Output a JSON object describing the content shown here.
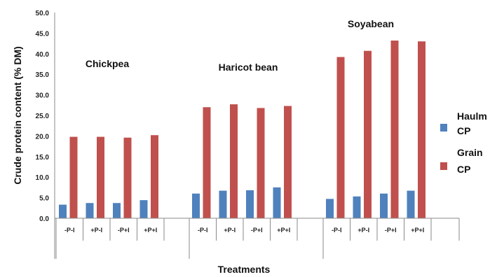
{
  "chart_data": {
    "type": "bar",
    "ylabel": "Crude protein content (% DM)",
    "xlabel": "Treatments",
    "ylim": [
      0,
      50
    ],
    "ytick_step": 5,
    "ytick_labels": [
      "0.0",
      "5.0",
      "10.0",
      "15.0",
      "20.0",
      "25.0",
      "30.0",
      "35.0",
      "40.0",
      "45.0",
      "50.0"
    ],
    "grid": false,
    "legend_position": "right",
    "groups": [
      {
        "name": "Chickpea",
        "categories": [
          "-P-I",
          "+P-I",
          "-P+I",
          "+P+I"
        ],
        "series": [
          {
            "values": [
              3.3,
              3.7,
              3.7,
              4.4
            ]
          },
          {
            "values": [
              19.8,
              19.8,
              19.6,
              20.2
            ]
          }
        ]
      },
      {
        "name": "Haricot bean",
        "categories": [
          "-P-I",
          "+P-I",
          "-P+I",
          "+P+I"
        ],
        "series": [
          {
            "values": [
              6.0,
              6.7,
              6.8,
              7.5
            ]
          },
          {
            "values": [
              27.0,
              27.7,
              26.8,
              27.3
            ]
          }
        ]
      },
      {
        "name": "Soyabean",
        "categories": [
          "-P-I",
          "+P-I",
          "-P+I",
          "+P+I"
        ],
        "series": [
          {
            "values": [
              4.7,
              5.3,
              6.0,
              6.7
            ]
          },
          {
            "values": [
              39.2,
              40.7,
              43.2,
              43.0
            ]
          }
        ]
      }
    ],
    "legend": [
      {
        "label_lines": [
          "Haulm",
          "CP"
        ],
        "color": "#4f81bd"
      },
      {
        "label_lines": [
          "Grain",
          "CP"
        ],
        "color": "#c0504d"
      }
    ]
  }
}
